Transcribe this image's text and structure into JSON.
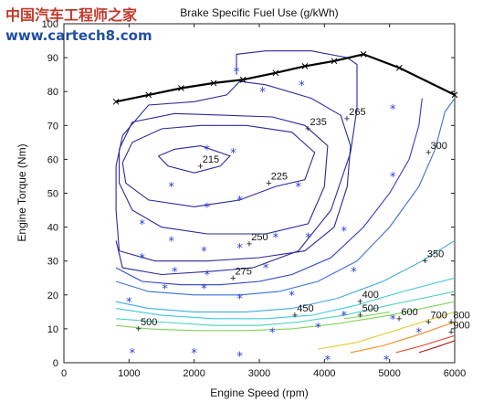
{
  "watermark": {
    "line1": "中国汽车工程师之家",
    "line2": "www.cartech8.com",
    "color1": "#c0392b",
    "color2": "#1f4fa3"
  },
  "chart_data": {
    "type": "contour",
    "title": "Brake Specific Fuel Use (g/kWh)",
    "xlabel": "Engine Speed (rpm)",
    "ylabel": "Engine Torque (Nm)",
    "xlim": [
      0,
      6000
    ],
    "ylim": [
      0,
      100
    ],
    "xticks": [
      0,
      1000,
      2000,
      3000,
      4000,
      5000,
      6000
    ],
    "yticks": [
      0,
      10,
      20,
      30,
      40,
      50,
      60,
      70,
      80,
      90,
      100
    ],
    "grid": false,
    "max_torque_curve": [
      [
        800,
        77
      ],
      [
        1300,
        79
      ],
      [
        1800,
        81
      ],
      [
        2300,
        82.5
      ],
      [
        2750,
        83.5
      ],
      [
        3250,
        85.5
      ],
      [
        3700,
        87.5
      ],
      [
        4150,
        89
      ],
      [
        4600,
        91
      ],
      [
        5150,
        87
      ],
      [
        6000,
        79
      ]
    ],
    "contours": [
      {
        "level": 215,
        "label": "215",
        "label_at": [
          2100,
          58
        ],
        "points": [
          [
            1450,
            61
          ],
          [
            1700,
            63
          ],
          [
            2100,
            64
          ],
          [
            2550,
            61
          ],
          [
            2400,
            58
          ],
          [
            2000,
            56
          ],
          [
            1600,
            58
          ],
          [
            1450,
            61
          ]
        ]
      },
      {
        "level": 225,
        "label": "225",
        "label_at": [
          3150,
          53
        ],
        "points": [
          [
            900,
            59
          ],
          [
            1050,
            65
          ],
          [
            1500,
            69
          ],
          [
            2100,
            70
          ],
          [
            2800,
            70
          ],
          [
            3500,
            68
          ],
          [
            3850,
            62
          ],
          [
            3700,
            54
          ],
          [
            3250,
            52
          ],
          [
            2700,
            48
          ],
          [
            2000,
            46
          ],
          [
            1300,
            48
          ],
          [
            950,
            53
          ],
          [
            900,
            59
          ]
        ]
      },
      {
        "level": 235,
        "label": "235",
        "label_at": [
          3750,
          69
        ],
        "points": [
          [
            850,
            63
          ],
          [
            1050,
            71
          ],
          [
            1700,
            73.5
          ],
          [
            2500,
            73
          ],
          [
            3200,
            72.5
          ],
          [
            3700,
            70
          ],
          [
            4050,
            64
          ],
          [
            4000,
            52
          ],
          [
            3750,
            41
          ],
          [
            3100,
            38
          ],
          [
            2200,
            38
          ],
          [
            1500,
            40
          ],
          [
            1050,
            45
          ],
          [
            850,
            53
          ],
          [
            850,
            63
          ]
        ]
      },
      {
        "level": 250,
        "label": "250",
        "label_at": [
          2850,
          35
        ],
        "points": [
          [
            800,
            58
          ],
          [
            900,
            67
          ],
          [
            1300,
            76
          ],
          [
            2000,
            77
          ],
          [
            2500,
            79
          ],
          [
            2700,
            83
          ],
          [
            3100,
            82
          ],
          [
            3800,
            78
          ],
          [
            4250,
            73
          ],
          [
            4400,
            64
          ],
          [
            4350,
            52
          ],
          [
            4150,
            40
          ],
          [
            3700,
            33
          ],
          [
            3000,
            31
          ],
          [
            2200,
            30
          ],
          [
            1400,
            30
          ],
          [
            850,
            33
          ],
          [
            800,
            45
          ],
          [
            800,
            58
          ]
        ]
      },
      {
        "level": 265,
        "label": "265",
        "label_at": [
          4350,
          72
        ],
        "points": [
          [
            2650,
            85
          ],
          [
            2650,
            91
          ],
          [
            3100,
            92
          ],
          [
            3800,
            92
          ],
          [
            4350,
            90
          ],
          [
            4500,
            88
          ],
          [
            4500,
            75
          ],
          [
            4400,
            62
          ],
          [
            4100,
            45
          ],
          [
            3600,
            33
          ],
          [
            2900,
            28
          ],
          [
            2300,
            27
          ],
          [
            1500,
            26
          ],
          [
            900,
            28
          ],
          [
            800,
            36
          ]
        ]
      },
      {
        "level": 275,
        "label": "275",
        "label_at": [
          2600,
          25
        ],
        "points": [
          [
            800,
            28
          ],
          [
            1200,
            24
          ],
          [
            1800,
            23
          ],
          [
            2400,
            23
          ],
          [
            3000,
            24
          ],
          [
            3500,
            26
          ],
          [
            4100,
            31
          ],
          [
            4600,
            40
          ],
          [
            5000,
            50
          ],
          [
            5300,
            60
          ],
          [
            5450,
            70
          ],
          [
            5500,
            78
          ]
        ]
      },
      {
        "level": 300,
        "label": "300",
        "label_at": [
          5600,
          62
        ],
        "points": [
          [
            800,
            24
          ],
          [
            1300,
            21
          ],
          [
            2000,
            20
          ],
          [
            2700,
            20
          ],
          [
            3300,
            21
          ],
          [
            3900,
            24
          ],
          [
            4500,
            30
          ],
          [
            5000,
            40
          ],
          [
            5450,
            52
          ],
          [
            5700,
            63
          ],
          [
            5850,
            74
          ],
          [
            6000,
            78
          ]
        ]
      },
      {
        "level": 350,
        "label": "350",
        "label_at": [
          5550,
          30
        ],
        "points": [
          [
            800,
            18
          ],
          [
            1300,
            16
          ],
          [
            2000,
            15
          ],
          [
            2800,
            15
          ],
          [
            3500,
            16
          ],
          [
            4200,
            19
          ],
          [
            4900,
            24
          ],
          [
            5500,
            30
          ],
          [
            6000,
            36
          ]
        ]
      },
      {
        "level": 400,
        "label": "400",
        "label_at": [
          4550,
          18
        ],
        "points": [
          [
            800,
            16
          ],
          [
            1500,
            14
          ],
          [
            2300,
            13
          ],
          [
            3100,
            13
          ],
          [
            3800,
            14
          ],
          [
            4500,
            17
          ],
          [
            5200,
            21
          ],
          [
            6000,
            25
          ]
        ]
      },
      {
        "level": 450,
        "label": "450",
        "label_at": [
          3550,
          14
        ],
        "points": [
          [
            800,
            13
          ],
          [
            1500,
            12
          ],
          [
            2300,
            11
          ],
          [
            3000,
            11
          ],
          [
            3600,
            12
          ],
          [
            4300,
            14
          ],
          [
            5000,
            17
          ],
          [
            6000,
            21
          ]
        ]
      },
      {
        "level": 500,
        "label": "500",
        "label_at": [
          1150,
          10
        ],
        "points": [
          [
            800,
            11
          ],
          [
            1300,
            10
          ],
          [
            2000,
            9.5
          ],
          [
            2800,
            9.5
          ],
          [
            3500,
            10
          ],
          [
            4200,
            11.5
          ],
          [
            5000,
            14
          ],
          [
            6000,
            18
          ]
        ]
      },
      {
        "level": 500,
        "label": "500",
        "label_at": [
          4550,
          14
        ],
        "points": [
          [
            4300,
            13
          ],
          [
            4700,
            14
          ],
          [
            5000,
            15
          ]
        ]
      },
      {
        "level": 600,
        "label": "600",
        "label_at": [
          5150,
          13
        ],
        "points": [
          [
            3900,
            4
          ],
          [
            4500,
            6
          ],
          [
            5000,
            9
          ],
          [
            5500,
            12
          ],
          [
            6000,
            15
          ]
        ]
      },
      {
        "level": 700,
        "label": "700",
        "label_at": [
          5600,
          12
        ],
        "points": [
          [
            4400,
            3
          ],
          [
            4900,
            5
          ],
          [
            5400,
            8
          ],
          [
            6000,
            12
          ]
        ]
      },
      {
        "level": 800,
        "label": "800",
        "label_at": [
          5950,
          12
        ],
        "points": [
          [
            5100,
            3
          ],
          [
            5500,
            5
          ],
          [
            6000,
            8
          ]
        ]
      },
      {
        "level": 900,
        "label": "900",
        "label_at": [
          5950,
          9
        ],
        "points": [
          [
            5450,
            3
          ],
          [
            5700,
            4.5
          ],
          [
            6000,
            6.5
          ]
        ]
      }
    ],
    "measured_points": [
      [
        2650,
        86
      ],
      [
        3050,
        80
      ],
      [
        3650,
        82
      ],
      [
        5050,
        75
      ],
      [
        2200,
        63
      ],
      [
        2600,
        62
      ],
      [
        1650,
        52
      ],
      [
        2200,
        46
      ],
      [
        2700,
        48
      ],
      [
        3600,
        52
      ],
      [
        5050,
        55
      ],
      [
        1200,
        41
      ],
      [
        1650,
        36
      ],
      [
        2150,
        33
      ],
      [
        2700,
        34
      ],
      [
        3250,
        37
      ],
      [
        3750,
        37
      ],
      [
        4300,
        39
      ],
      [
        1200,
        31
      ],
      [
        1700,
        27
      ],
      [
        2200,
        26
      ],
      [
        3100,
        28
      ],
      [
        4450,
        27
      ],
      [
        1550,
        22
      ],
      [
        2150,
        22
      ],
      [
        3500,
        20
      ],
      [
        1000,
        18
      ],
      [
        2700,
        19
      ],
      [
        3200,
        9
      ],
      [
        3900,
        10.5
      ],
      [
        4300,
        14
      ],
      [
        5050,
        13
      ],
      [
        5450,
        9
      ],
      [
        1050,
        3
      ],
      [
        2000,
        3
      ],
      [
        2700,
        2
      ],
      [
        4050,
        1
      ],
      [
        4950,
        1
      ]
    ]
  }
}
